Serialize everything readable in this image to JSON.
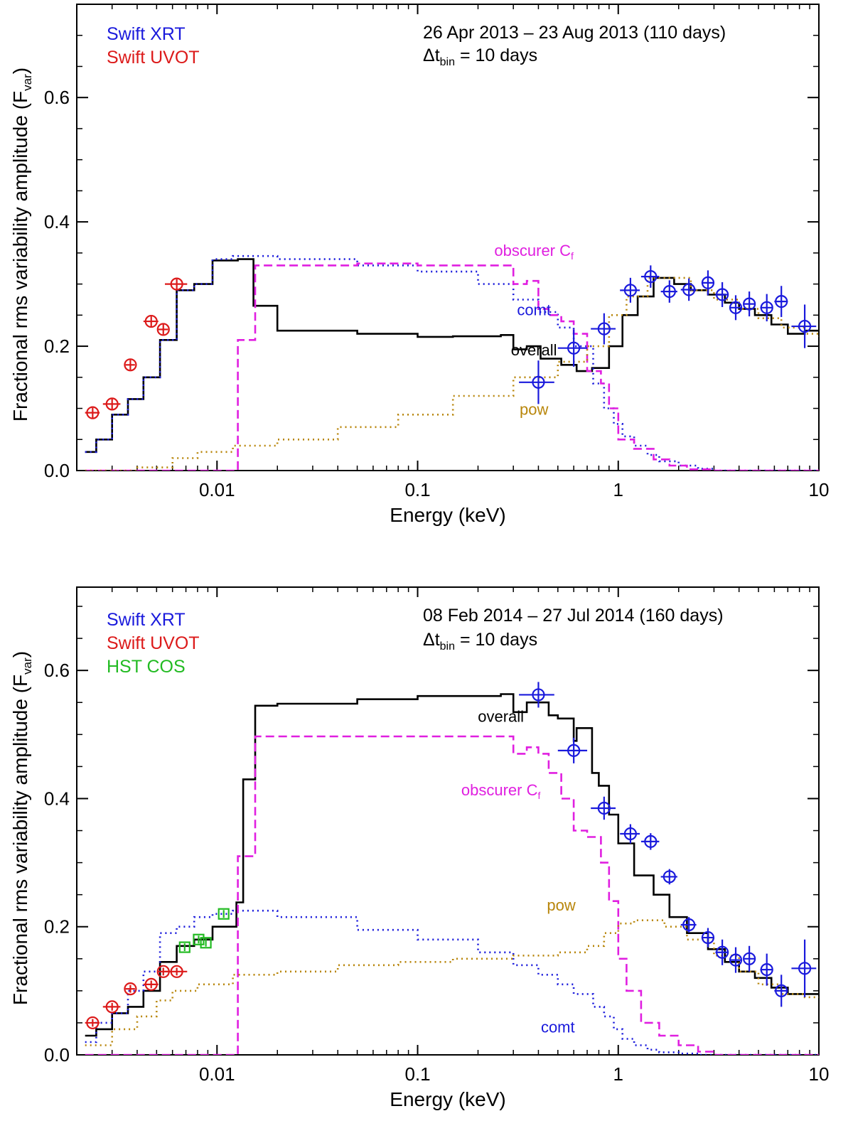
{
  "chart_data": [
    {
      "type": "line",
      "panel": "top",
      "xscale": "log",
      "xlim": [
        0.002,
        10
      ],
      "ylim": [
        0,
        0.75
      ],
      "xlabel": "Energy (keV)",
      "ylabel": "Fractional rms variability amplitude (F",
      "ylabel_sub": "var",
      "xticks": [
        {
          "value": 0.01,
          "label": "0.01"
        },
        {
          "value": 0.1,
          "label": "0.1"
        },
        {
          "value": 1,
          "label": "1"
        },
        {
          "value": 10,
          "label": "10"
        }
      ],
      "yticks": [
        {
          "value": 0.0,
          "label": "0.0"
        },
        {
          "value": 0.2,
          "label": "0.2"
        },
        {
          "value": 0.4,
          "label": "0.4"
        },
        {
          "value": 0.6,
          "label": "0.6"
        }
      ],
      "date_range": "26 Apr 2013 – 23 Aug 2013 (110 days)",
      "dt_label": {
        "prefix": "Δt",
        "sub": "bin",
        "rest": " = 10 days"
      },
      "legend": [
        {
          "label": "Swift XRT",
          "color": "#1a1adc"
        },
        {
          "label": "Swift UVOT",
          "color": "#dc1a1a"
        }
      ],
      "curve_labels": [
        {
          "text": "obscurer C",
          "sub": "f",
          "color": "#e01fe0",
          "x": 0.38,
          "y": 0.345
        },
        {
          "text": "comt",
          "color": "#1a1adc",
          "x": 0.38,
          "y": 0.25
        },
        {
          "text": "overall",
          "color": "#000000",
          "x": 0.38,
          "y": 0.185
        },
        {
          "text": "pow",
          "color": "#b8860b",
          "x": 0.38,
          "y": 0.09
        }
      ],
      "series": [
        {
          "name": "overall",
          "style": "solid",
          "color": "#000000",
          "x": [
            0.0022,
            0.0025,
            0.003,
            0.0036,
            0.0043,
            0.0052,
            0.0063,
            0.0077,
            0.0095,
            0.0127,
            0.0152,
            0.02,
            0.05,
            0.1,
            0.15,
            0.26,
            0.3,
            0.35,
            0.41,
            0.52,
            0.62,
            0.74,
            0.9,
            1.05,
            1.25,
            1.5,
            1.9,
            2.3,
            2.8,
            3.4,
            4.0,
            4.8,
            5.8,
            7.0,
            8.5
          ],
          "y": [
            0.03,
            0.05,
            0.09,
            0.115,
            0.15,
            0.21,
            0.29,
            0.3,
            0.338,
            0.34,
            0.265,
            0.225,
            0.22,
            0.215,
            0.216,
            0.218,
            0.195,
            0.2,
            0.18,
            0.17,
            0.16,
            0.165,
            0.2,
            0.25,
            0.28,
            0.31,
            0.3,
            0.29,
            0.283,
            0.27,
            0.26,
            0.25,
            0.235,
            0.22,
            0.225
          ]
        },
        {
          "name": "comt",
          "style": "dotted",
          "color": "#1a1adc",
          "x": [
            0.0022,
            0.0025,
            0.003,
            0.0036,
            0.0043,
            0.0052,
            0.0063,
            0.0077,
            0.0095,
            0.012,
            0.02,
            0.05,
            0.1,
            0.2,
            0.3,
            0.4,
            0.5,
            0.6,
            0.75,
            0.85,
            0.95,
            1.05,
            1.2,
            1.4,
            1.6,
            2.0,
            2.5,
            3.0
          ],
          "y": [
            0.03,
            0.05,
            0.09,
            0.115,
            0.15,
            0.21,
            0.29,
            0.3,
            0.34,
            0.345,
            0.34,
            0.33,
            0.32,
            0.3,
            0.275,
            0.255,
            0.23,
            0.2,
            0.14,
            0.1,
            0.075,
            0.055,
            0.04,
            0.025,
            0.015,
            0.008,
            0.003,
            0.0
          ]
        },
        {
          "name": "obscurer C_f",
          "style": "dashed",
          "color": "#e01fe0",
          "x": [
            0.0022,
            0.0125,
            0.0127,
            0.015,
            0.0155,
            0.05,
            0.1,
            0.26,
            0.3,
            0.35,
            0.4,
            0.45,
            0.52,
            0.6,
            0.7,
            0.82,
            0.9,
            1.0,
            1.2,
            1.5,
            1.8,
            2.2,
            3.0
          ],
          "y": [
            0.0,
            0.0,
            0.21,
            0.21,
            0.33,
            0.333,
            0.33,
            0.33,
            0.3,
            0.305,
            0.26,
            0.25,
            0.24,
            0.22,
            0.16,
            0.14,
            0.1,
            0.05,
            0.035,
            0.018,
            0.008,
            0.002,
            0.0
          ]
        },
        {
          "name": "pow",
          "style": "dotted",
          "color": "#b8860b",
          "x": [
            0.0022,
            0.004,
            0.006,
            0.008,
            0.012,
            0.02,
            0.04,
            0.08,
            0.15,
            0.3,
            0.5,
            0.7,
            0.9,
            1.1,
            1.4,
            1.8,
            2.3,
            3.0,
            4.0,
            5.0,
            6.5,
            8.5,
            10
          ],
          "y": [
            0.0,
            0.005,
            0.02,
            0.03,
            0.04,
            0.05,
            0.07,
            0.09,
            0.12,
            0.15,
            0.175,
            0.2,
            0.25,
            0.28,
            0.31,
            0.31,
            0.29,
            0.275,
            0.26,
            0.245,
            0.23,
            0.22,
            0.215
          ]
        }
      ],
      "points": [
        {
          "name": "Swift UVOT",
          "color": "#dc1a1a",
          "marker": "circle",
          "x": [
            0.0024,
            0.003,
            0.0037,
            0.0047,
            0.0054,
            0.0063
          ],
          "y": [
            0.093,
            0.107,
            0.17,
            0.24,
            0.227,
            0.3
          ],
          "xerr": [
            0.0002,
            0.0003,
            0.0002,
            0.0004,
            0.0003,
            0.0008
          ],
          "yerr": [
            0.008,
            0.008,
            0.008,
            0.008,
            0.008,
            0.008
          ]
        },
        {
          "name": "Swift XRT",
          "color": "#1a1adc",
          "marker": "circle",
          "x": [
            0.4,
            0.6,
            0.85,
            1.15,
            1.45,
            1.8,
            2.25,
            2.8,
            3.3,
            3.85,
            4.5,
            5.5,
            6.5,
            8.5
          ],
          "y": [
            0.142,
            0.197,
            0.228,
            0.29,
            0.312,
            0.288,
            0.291,
            0.302,
            0.283,
            0.262,
            0.268,
            0.262,
            0.272,
            0.232
          ],
          "xerr": [
            0.08,
            0.1,
            0.12,
            0.13,
            0.15,
            0.17,
            0.2,
            0.2,
            0.25,
            0.25,
            0.3,
            0.4,
            0.5,
            1.2
          ],
          "yerr": [
            0.035,
            0.03,
            0.025,
            0.02,
            0.018,
            0.018,
            0.018,
            0.02,
            0.02,
            0.02,
            0.02,
            0.022,
            0.025,
            0.035
          ]
        }
      ]
    },
    {
      "type": "line",
      "panel": "bottom",
      "xscale": "log",
      "xlim": [
        0.002,
        10
      ],
      "ylim": [
        0,
        0.73
      ],
      "xlabel": "Energy (keV)",
      "ylabel": "Fractional rms variability amplitude (F",
      "ylabel_sub": "var",
      "xticks": [
        {
          "value": 0.01,
          "label": "0.01"
        },
        {
          "value": 0.1,
          "label": "0.1"
        },
        {
          "value": 1,
          "label": "1"
        },
        {
          "value": 10,
          "label": "10"
        }
      ],
      "yticks": [
        {
          "value": 0.0,
          "label": "0.0"
        },
        {
          "value": 0.2,
          "label": "0.2"
        },
        {
          "value": 0.4,
          "label": "0.4"
        },
        {
          "value": 0.6,
          "label": "0.6"
        }
      ],
      "date_range": "08 Feb 2014 – 27 Jul 2014 (160 days)",
      "dt_label": {
        "prefix": "Δt",
        "sub": "bin",
        "rest": " = 10 days"
      },
      "legend": [
        {
          "label": "Swift XRT",
          "color": "#1a1adc"
        },
        {
          "label": "Swift UVOT",
          "color": "#dc1a1a"
        },
        {
          "label": "HST COS",
          "color": "#22bb22"
        }
      ],
      "curve_labels": [
        {
          "text": "overall",
          "color": "#000000",
          "x": 0.26,
          "y": 0.52
        },
        {
          "text": "obscurer C",
          "sub": "f",
          "color": "#e01fe0",
          "x": 0.26,
          "y": 0.405
        },
        {
          "text": "pow",
          "color": "#b8860b",
          "x": 0.52,
          "y": 0.225
        },
        {
          "text": "comt",
          "color": "#1a1adc",
          "x": 0.5,
          "y": 0.035
        }
      ],
      "series": [
        {
          "name": "overall",
          "style": "solid",
          "color": "#000000",
          "x": [
            0.0022,
            0.0025,
            0.003,
            0.0036,
            0.0043,
            0.0052,
            0.0063,
            0.0077,
            0.0095,
            0.0125,
            0.0127,
            0.0135,
            0.015,
            0.0155,
            0.02,
            0.05,
            0.1,
            0.26,
            0.3,
            0.35,
            0.4,
            0.45,
            0.5,
            0.6,
            0.62,
            0.74,
            0.8,
            0.9,
            1.0,
            1.2,
            1.5,
            1.8,
            2.2,
            2.8,
            3.4,
            4.0,
            4.8,
            5.8,
            7.0,
            8.5
          ],
          "y": [
            0.03,
            0.04,
            0.065,
            0.075,
            0.1,
            0.145,
            0.17,
            0.18,
            0.2,
            0.238,
            0.238,
            0.43,
            0.43,
            0.545,
            0.548,
            0.555,
            0.56,
            0.563,
            0.535,
            0.55,
            0.55,
            0.53,
            0.525,
            0.49,
            0.51,
            0.44,
            0.42,
            0.375,
            0.33,
            0.28,
            0.25,
            0.215,
            0.19,
            0.165,
            0.145,
            0.13,
            0.12,
            0.105,
            0.095,
            0.095
          ]
        },
        {
          "name": "comt",
          "style": "dotted",
          "color": "#1a1adc",
          "x": [
            0.0022,
            0.0025,
            0.003,
            0.0036,
            0.0043,
            0.0052,
            0.0063,
            0.0077,
            0.0095,
            0.012,
            0.02,
            0.05,
            0.1,
            0.2,
            0.3,
            0.4,
            0.5,
            0.6,
            0.75,
            0.85,
            0.95,
            1.05,
            1.2,
            1.4,
            1.6,
            2.0,
            2.5,
            3.0
          ],
          "y": [
            0.02,
            0.05,
            0.065,
            0.1,
            0.13,
            0.19,
            0.2,
            0.215,
            0.22,
            0.225,
            0.215,
            0.195,
            0.18,
            0.16,
            0.14,
            0.125,
            0.11,
            0.095,
            0.075,
            0.06,
            0.04,
            0.025,
            0.015,
            0.008,
            0.004,
            0.002,
            0.0,
            0.0
          ]
        },
        {
          "name": "obscurer C_f",
          "style": "dashed",
          "color": "#e01fe0",
          "x": [
            0.0022,
            0.0125,
            0.0127,
            0.015,
            0.0155,
            0.05,
            0.1,
            0.26,
            0.3,
            0.35,
            0.4,
            0.45,
            0.52,
            0.6,
            0.7,
            0.82,
            0.9,
            1.0,
            1.1,
            1.3,
            1.6,
            2.0,
            2.5,
            3.0
          ],
          "y": [
            0.0,
            0.0,
            0.31,
            0.31,
            0.497,
            0.497,
            0.497,
            0.497,
            0.47,
            0.48,
            0.47,
            0.44,
            0.4,
            0.35,
            0.34,
            0.3,
            0.24,
            0.15,
            0.1,
            0.05,
            0.03,
            0.015,
            0.005,
            0.0
          ]
        },
        {
          "name": "pow",
          "style": "dotted",
          "color": "#b8860b",
          "x": [
            0.0022,
            0.003,
            0.004,
            0.005,
            0.006,
            0.008,
            0.012,
            0.02,
            0.04,
            0.08,
            0.15,
            0.3,
            0.5,
            0.7,
            0.85,
            1.0,
            1.2,
            1.4,
            1.7,
            2.2,
            3.0,
            4.0,
            5.0,
            6.5,
            8.5,
            10
          ],
          "y": [
            0.015,
            0.04,
            0.06,
            0.085,
            0.1,
            0.11,
            0.125,
            0.13,
            0.14,
            0.145,
            0.15,
            0.155,
            0.16,
            0.17,
            0.19,
            0.205,
            0.21,
            0.21,
            0.2,
            0.18,
            0.155,
            0.13,
            0.11,
            0.095,
            0.09,
            0.09
          ]
        }
      ],
      "points": [
        {
          "name": "Swift UVOT",
          "color": "#dc1a1a",
          "marker": "circle",
          "x": [
            0.0024,
            0.003,
            0.0037,
            0.0047,
            0.0054,
            0.0063
          ],
          "y": [
            0.05,
            0.075,
            0.103,
            0.11,
            0.13,
            0.13
          ],
          "xerr": [
            0.0002,
            0.0003,
            0.0002,
            0.0004,
            0.0003,
            0.0008
          ],
          "yerr": [
            0.006,
            0.006,
            0.006,
            0.006,
            0.006,
            0.006
          ]
        },
        {
          "name": "HST COS",
          "color": "#22bb22",
          "marker": "square",
          "x": [
            0.0069,
            0.0081,
            0.0088,
            0.0108
          ],
          "y": [
            0.168,
            0.18,
            0.175,
            0.22
          ],
          "xerr": [
            0,
            0,
            0,
            0
          ],
          "yerr": [
            0.006,
            0.006,
            0.006,
            0.006
          ]
        },
        {
          "name": "Swift XRT",
          "color": "#1a1adc",
          "marker": "circle",
          "x": [
            0.4,
            0.6,
            0.85,
            1.15,
            1.45,
            1.8,
            2.25,
            2.8,
            3.3,
            3.85,
            4.5,
            5.5,
            6.5,
            8.5
          ],
          "y": [
            0.562,
            0.475,
            0.385,
            0.345,
            0.333,
            0.278,
            0.203,
            0.183,
            0.16,
            0.148,
            0.15,
            0.133,
            0.1,
            0.135
          ],
          "xerr": [
            0.08,
            0.1,
            0.12,
            0.13,
            0.15,
            0.17,
            0.2,
            0.2,
            0.25,
            0.25,
            0.3,
            0.4,
            0.5,
            1.2
          ],
          "yerr": [
            0.02,
            0.02,
            0.018,
            0.015,
            0.013,
            0.012,
            0.012,
            0.015,
            0.02,
            0.02,
            0.02,
            0.025,
            0.025,
            0.045
          ]
        }
      ]
    }
  ]
}
